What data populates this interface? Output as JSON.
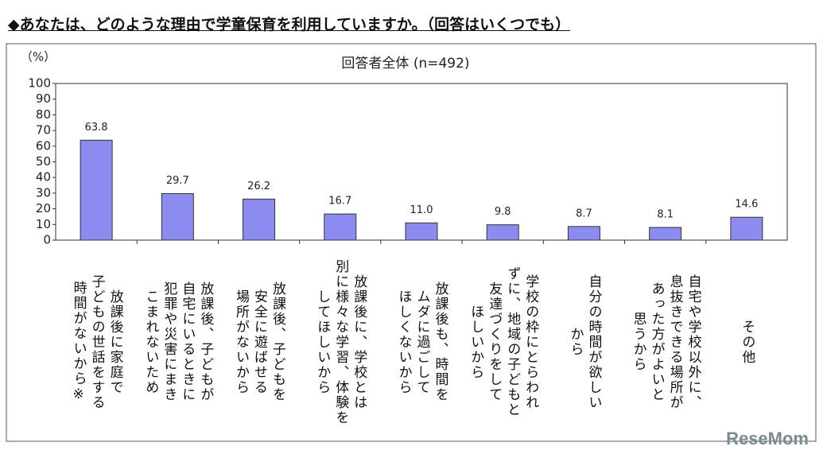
{
  "heading": "◆あなたは、どのような理由で学童保育を利用していますか。（回答はいくつでも）",
  "watermark": "ReseMom",
  "chart_data": {
    "type": "bar",
    "title": "回答者全体 (n=492)",
    "y_unit_label": "（%）",
    "categories": [
      "放課後に家庭で\n子どもの世話をする\n時間がないから※",
      "放課後、子どもが\n自宅にいるときに\n犯罪や災害にまき\nこまれないため",
      "放課後、子どもを\n安全に遊ばせる\n場所がないから",
      "放課後に、学校とは\n別に様々な学習、体験を\nしてほしいから",
      "放課後も、時間を\nムダに過ごして\nほしくないから",
      "学校の枠にとらわれ\nずに、地域の子どもと\n友達づくりをして\nほしいから",
      "自分の時間が欲しい\nから",
      "自宅や学校以外に、\n息抜きできる場所が\nあった方がよいと\n思うから",
      "その他"
    ],
    "values": [
      63.8,
      29.7,
      26.2,
      16.7,
      11.0,
      9.8,
      8.7,
      8.1,
      14.6
    ],
    "value_labels": [
      "63.8",
      "29.7",
      "26.2",
      "16.7",
      "11.0",
      "9.8",
      "8.7",
      "8.1",
      "14.6"
    ],
    "color": "#8c8cf0",
    "ylim": [
      0,
      100
    ],
    "yticks": [
      0,
      10,
      20,
      30,
      40,
      50,
      60,
      70,
      80,
      90,
      100
    ],
    "grid": false
  }
}
